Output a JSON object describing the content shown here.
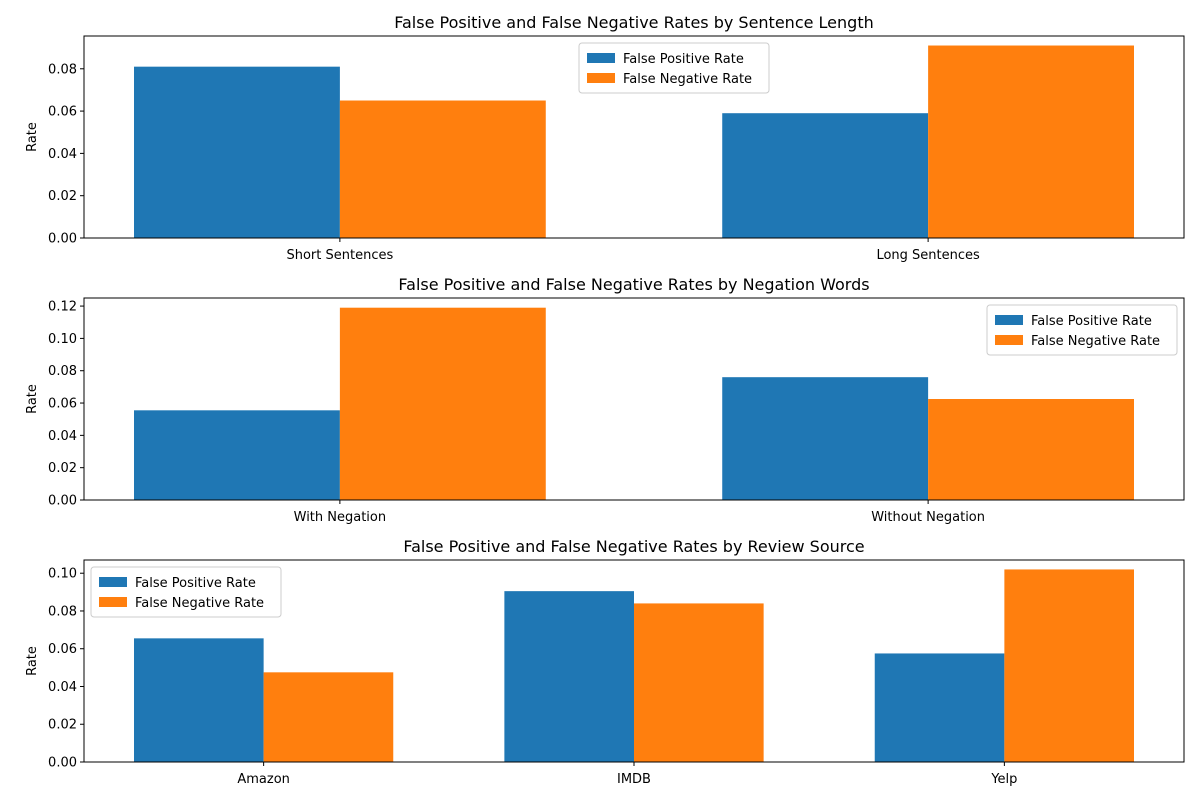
{
  "colors": {
    "false_positive": "#1f77b4",
    "false_negative": "#ff7f0e",
    "axis": "#000000",
    "legend_border": "#cccccc"
  },
  "chart_data": [
    {
      "type": "bar",
      "title": "False Positive and False Negative Rates by Sentence Length",
      "xlabel": "",
      "ylabel": "Rate",
      "categories": [
        "Short Sentences",
        "Long Sentences"
      ],
      "series": [
        {
          "name": "False Positive Rate",
          "values": [
            0.081,
            0.059
          ]
        },
        {
          "name": "False Negative Rate",
          "values": [
            0.065,
            0.091
          ]
        }
      ],
      "ylim": [
        0,
        0.0955
      ],
      "yticks": [
        "0.00",
        "0.02",
        "0.04",
        "0.06",
        "0.08"
      ],
      "legend_position": "top-center",
      "grid": false
    },
    {
      "type": "bar",
      "title": "False Positive and False Negative Rates by Negation Words",
      "xlabel": "",
      "ylabel": "Rate",
      "categories": [
        "With Negation",
        "Without Negation"
      ],
      "series": [
        {
          "name": "False Positive Rate",
          "values": [
            0.0555,
            0.076
          ]
        },
        {
          "name": "False Negative Rate",
          "values": [
            0.119,
            0.0625
          ]
        }
      ],
      "ylim": [
        0,
        0.125
      ],
      "yticks": [
        "0.00",
        "0.02",
        "0.04",
        "0.06",
        "0.08",
        "0.10",
        "0.12"
      ],
      "legend_position": "top-right",
      "grid": false
    },
    {
      "type": "bar",
      "title": "False Positive and False Negative Rates by Review Source",
      "xlabel": "",
      "ylabel": "Rate",
      "categories": [
        "Amazon",
        "IMDB",
        "Yelp"
      ],
      "series": [
        {
          "name": "False Positive Rate",
          "values": [
            0.0655,
            0.0905,
            0.0575
          ]
        },
        {
          "name": "False Negative Rate",
          "values": [
            0.0475,
            0.084,
            0.102
          ]
        }
      ],
      "ylim": [
        0,
        0.107
      ],
      "yticks": [
        "0.00",
        "0.02",
        "0.04",
        "0.06",
        "0.08",
        "0.10"
      ],
      "legend_position": "top-left",
      "grid": false
    }
  ]
}
